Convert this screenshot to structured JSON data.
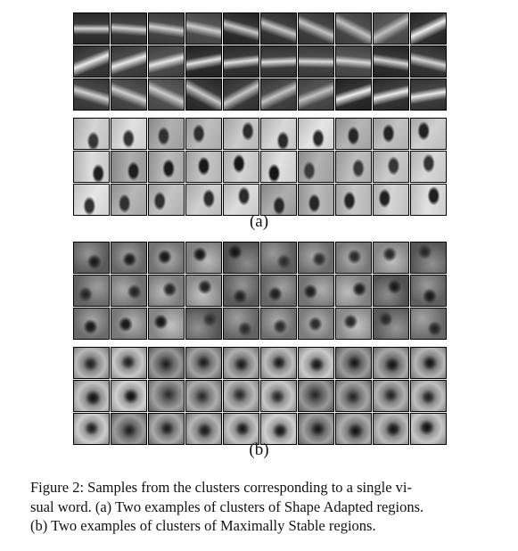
{
  "figure": {
    "panel_a_label": "(a)",
    "panel_b_label": "(b)",
    "caption_lines": [
      "Figure 2:  Samples from the clusters corresponding to a single vi-",
      "sual word. (a) Two examples of clusters of Shape Adapted regions.",
      "(b) Two examples of clusters of Maximally Stable regions."
    ]
  },
  "panels": [
    {
      "groups": [
        {
          "kind": "wedge",
          "rows": 3,
          "cols": 10
        },
        {
          "kind": "door",
          "rows": 3,
          "cols": 10
        }
      ]
    },
    {
      "groups": [
        {
          "kind": "darkblob",
          "rows": 3,
          "cols": 10
        },
        {
          "kind": "spot",
          "rows": 3,
          "cols": 10
        }
      ]
    }
  ]
}
